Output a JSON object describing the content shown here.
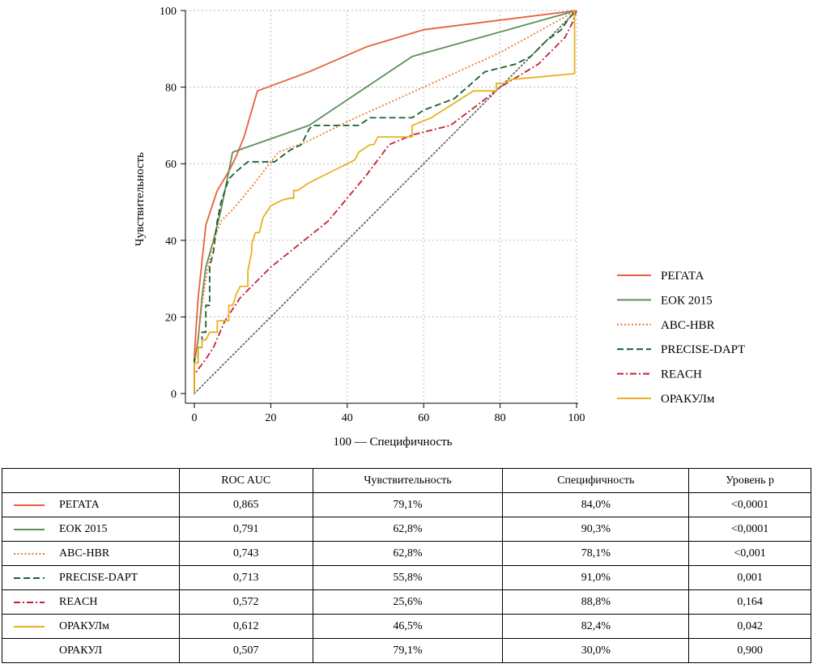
{
  "chart_data": {
    "type": "line",
    "xlabel": "100 — Специфичность",
    "ylabel": "Чувствительность",
    "xlim": [
      0,
      100
    ],
    "ylim": [
      0,
      100
    ],
    "x_ticks": [
      "0",
      "20",
      "40",
      "60",
      "80",
      "100"
    ],
    "y_ticks": [
      "0",
      "20",
      "40",
      "60",
      "80",
      "100"
    ],
    "grid": true,
    "legend_position": "right",
    "diagonal_reference": true,
    "series": [
      {
        "name": "РЕГАТА",
        "color": "#e8603c",
        "style": "solid",
        "points": [
          [
            0,
            0
          ],
          [
            0,
            10
          ],
          [
            0.5,
            18
          ],
          [
            1,
            25
          ],
          [
            3,
            44
          ],
          [
            6,
            53
          ],
          [
            9,
            58
          ],
          [
            11,
            62
          ],
          [
            13,
            67
          ],
          [
            16.5,
            79
          ],
          [
            30,
            84
          ],
          [
            45,
            90.5
          ],
          [
            60,
            95
          ],
          [
            100,
            100
          ]
        ]
      },
      {
        "name": "ЕОК 2015",
        "color": "#5d8f5d",
        "style": "solid",
        "points": [
          [
            0,
            0
          ],
          [
            0,
            8
          ],
          [
            1,
            14
          ],
          [
            2,
            25
          ],
          [
            3,
            33
          ],
          [
            5,
            40
          ],
          [
            7,
            48
          ],
          [
            9,
            58
          ],
          [
            10,
            63
          ],
          [
            30,
            70
          ],
          [
            57,
            88
          ],
          [
            100,
            100
          ]
        ]
      },
      {
        "name": "ABC-HBR",
        "color": "#ee7a30",
        "style": "dotted",
        "points": [
          [
            0,
            0
          ],
          [
            0,
            8
          ],
          [
            1,
            15
          ],
          [
            2,
            23
          ],
          [
            3,
            30
          ],
          [
            5,
            40
          ],
          [
            7,
            45
          ],
          [
            10,
            48
          ],
          [
            15,
            54
          ],
          [
            22,
            63
          ],
          [
            30,
            66
          ],
          [
            40,
            71
          ],
          [
            60,
            80
          ],
          [
            80,
            89
          ],
          [
            100,
            100
          ]
        ]
      },
      {
        "name": "PRECISE-DAPT",
        "color": "#17602f",
        "style": "dashed",
        "points": [
          [
            0,
            0
          ],
          [
            0,
            9
          ],
          [
            1,
            9
          ],
          [
            1,
            12
          ],
          [
            2,
            12
          ],
          [
            2,
            16
          ],
          [
            3,
            16
          ],
          [
            3,
            23
          ],
          [
            4,
            23
          ],
          [
            4,
            33
          ],
          [
            5,
            37
          ],
          [
            6,
            45
          ],
          [
            7,
            50
          ],
          [
            8,
            53
          ],
          [
            9,
            56
          ],
          [
            11,
            58
          ],
          [
            14,
            60.5
          ],
          [
            20,
            60.5
          ],
          [
            21,
            60.5
          ],
          [
            25,
            63.5
          ],
          [
            28,
            65
          ],
          [
            30,
            69
          ],
          [
            31,
            70
          ],
          [
            43,
            70
          ],
          [
            46,
            72
          ],
          [
            57,
            72
          ],
          [
            60,
            74
          ],
          [
            68,
            77
          ],
          [
            76,
            84
          ],
          [
            84,
            86
          ],
          [
            88,
            88
          ],
          [
            92,
            92
          ],
          [
            96,
            95
          ],
          [
            98,
            98
          ],
          [
            100,
            100
          ]
        ]
      },
      {
        "name": "REACH",
        "color": "#c42032",
        "style": "dashdot",
        "points": [
          [
            0,
            0
          ],
          [
            0,
            5
          ],
          [
            3,
            9
          ],
          [
            5,
            12
          ],
          [
            8,
            19
          ],
          [
            12,
            25
          ],
          [
            15,
            28
          ],
          [
            20,
            33
          ],
          [
            25,
            37
          ],
          [
            30,
            41
          ],
          [
            35,
            45
          ],
          [
            40,
            51
          ],
          [
            45,
            57
          ],
          [
            51,
            65
          ],
          [
            57,
            67.5
          ],
          [
            67,
            70
          ],
          [
            75,
            76
          ],
          [
            80,
            80
          ],
          [
            90,
            86
          ],
          [
            97,
            93
          ],
          [
            99,
            97
          ],
          [
            100,
            100
          ]
        ]
      },
      {
        "name": "ОРАКУЛм",
        "color": "#eab11e",
        "style": "solid",
        "points": [
          [
            0,
            0
          ],
          [
            0,
            8
          ],
          [
            1,
            8
          ],
          [
            1,
            12
          ],
          [
            2,
            12
          ],
          [
            2,
            14
          ],
          [
            3,
            14
          ],
          [
            4,
            16
          ],
          [
            5,
            16
          ],
          [
            6,
            16
          ],
          [
            6,
            19
          ],
          [
            9,
            19
          ],
          [
            9,
            23
          ],
          [
            10,
            23
          ],
          [
            11,
            26
          ],
          [
            12,
            28
          ],
          [
            14,
            28
          ],
          [
            14,
            32
          ],
          [
            15,
            37
          ],
          [
            15,
            39
          ],
          [
            16,
            42
          ],
          [
            17,
            42
          ],
          [
            18,
            46
          ],
          [
            20,
            49
          ],
          [
            23,
            50.5
          ],
          [
            25,
            51
          ],
          [
            26,
            51
          ],
          [
            26,
            53
          ],
          [
            27,
            53
          ],
          [
            30,
            55
          ],
          [
            35,
            57.5
          ],
          [
            40,
            60
          ],
          [
            42,
            61
          ],
          [
            43,
            63
          ],
          [
            46,
            65
          ],
          [
            47,
            65
          ],
          [
            48,
            67
          ],
          [
            57,
            67
          ],
          [
            57,
            70
          ],
          [
            62,
            72
          ],
          [
            73,
            79
          ],
          [
            79,
            79
          ],
          [
            79,
            81
          ],
          [
            81,
            81
          ],
          [
            83,
            82
          ],
          [
            99.5,
            83.5
          ],
          [
            99.5,
            100
          ],
          [
            100,
            100
          ]
        ]
      }
    ]
  },
  "table": {
    "headers": [
      "ROC AUC",
      "Чувствительность",
      "Специфичность",
      "Уровень р"
    ],
    "rows": [
      {
        "name": "РЕГАТА",
        "auc": "0,865",
        "sens": "79,1%",
        "spec": "84,0%",
        "p": "<0,0001"
      },
      {
        "name": "ЕОК 2015",
        "auc": "0,791",
        "sens": "62,8%",
        "spec": "90,3%",
        "p": "<0,0001"
      },
      {
        "name": "ABC-HBR",
        "auc": "0,743",
        "sens": "62,8%",
        "spec": "78,1%",
        "p": "<0,001"
      },
      {
        "name": "PRECISE-DAPT",
        "auc": "0,713",
        "sens": "55,8%",
        "spec": "91,0%",
        "p": "0,001"
      },
      {
        "name": "REACH",
        "auc": "0,572",
        "sens": "25,6%",
        "spec": "88,8%",
        "p": "0,164"
      },
      {
        "name": "ОРАКУЛм",
        "auc": "0,612",
        "sens": "46,5%",
        "spec": "82,4%",
        "p": "0,042"
      },
      {
        "name": "ОРАКУЛ",
        "auc": "0,507",
        "sens": "79,1%",
        "spec": "30,0%",
        "p": "0,900"
      }
    ]
  }
}
